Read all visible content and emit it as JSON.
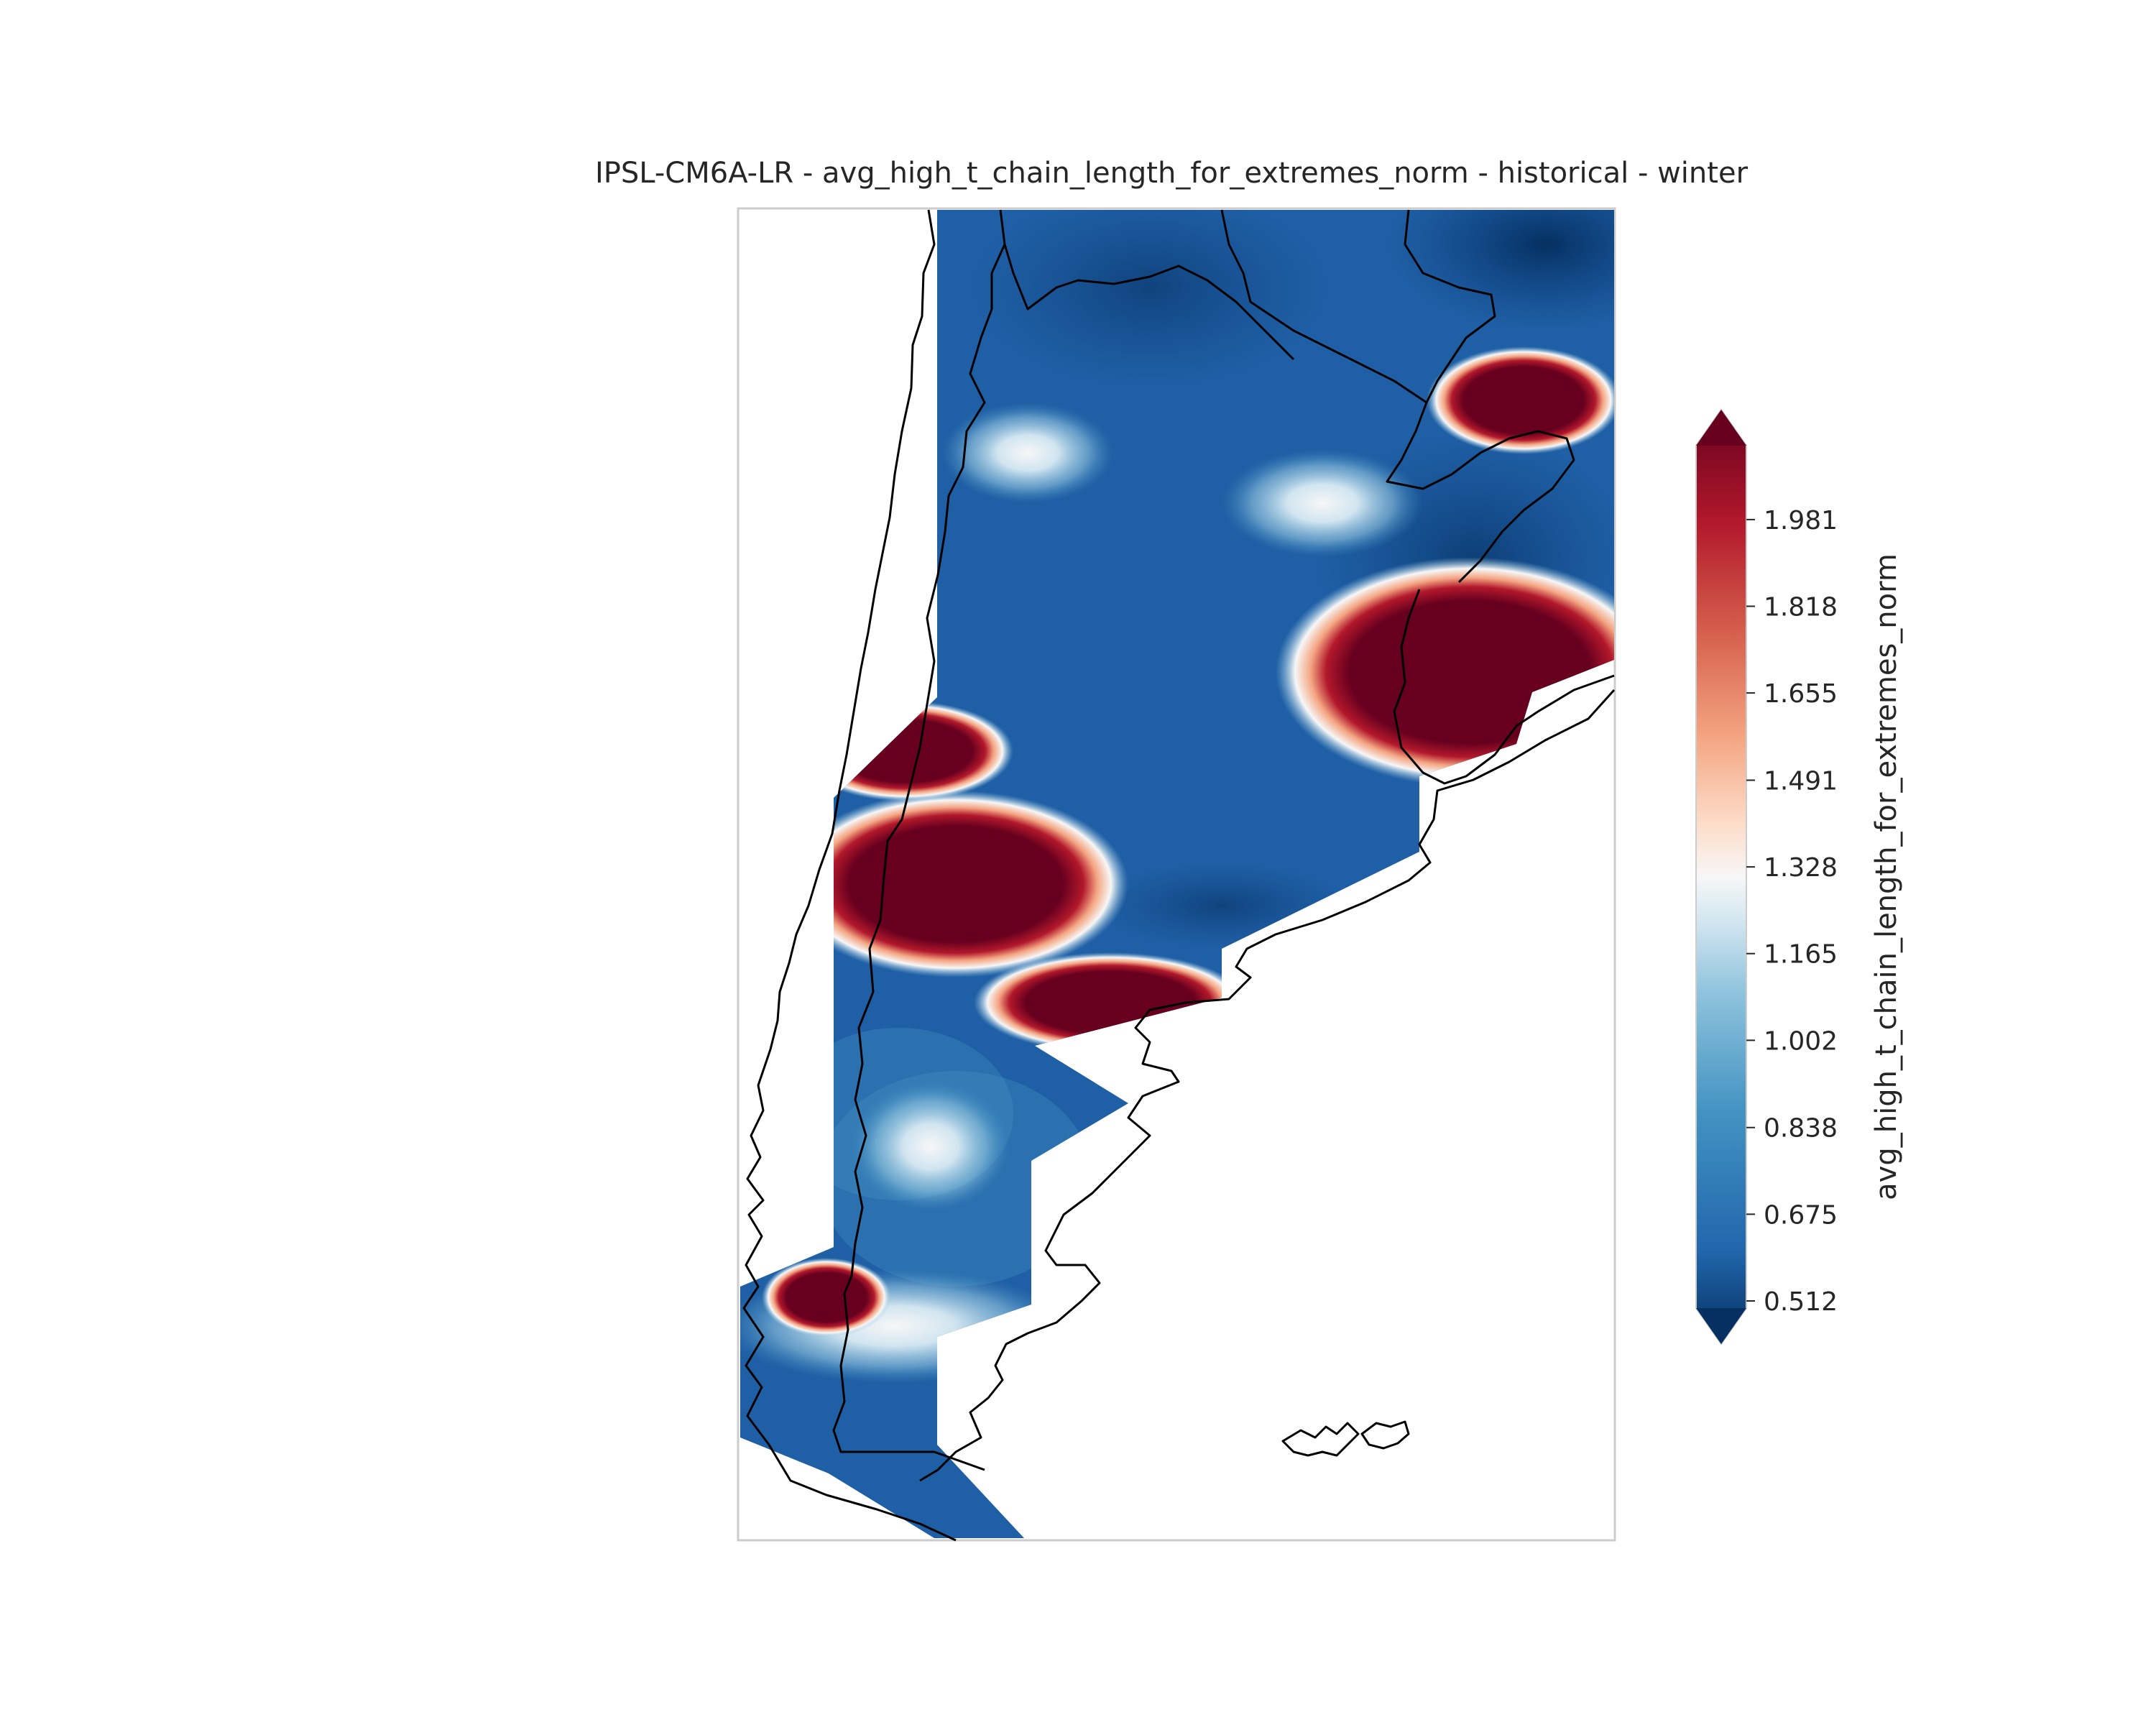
{
  "title": "IPSL-CM6A-LR - avg_high_t_chain_length_for_extremes_norm - historical - winter",
  "colorbar": {
    "label": "avg_high_t_chain_length_for_extremes_norm",
    "min": 0.512,
    "max": 2.12,
    "ticks": [
      "0.512",
      "0.675",
      "0.838",
      "1.002",
      "1.165",
      "1.328",
      "1.491",
      "1.655",
      "1.818",
      "1.981"
    ],
    "extend": "both",
    "colormap": "RdBu_r",
    "colors": [
      "#053061",
      "#2166ac",
      "#4393c3",
      "#92c5de",
      "#d1e5f0",
      "#f7f7f7",
      "#fddbc7",
      "#f4a582",
      "#d6604d",
      "#b2182b",
      "#67001f"
    ]
  },
  "map": {
    "region": "southern South America (Argentina, Chile, Uruguay, Paraguay)",
    "base_color": "#1f5fa5",
    "hotspot_color": "#67001f",
    "coastline_color": "#000000"
  }
}
